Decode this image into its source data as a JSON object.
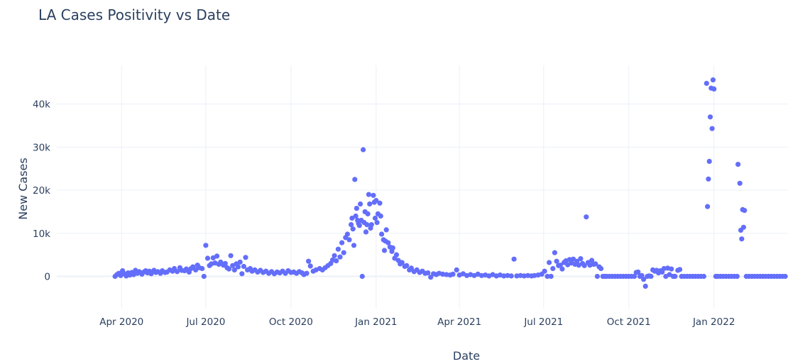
{
  "chart_data": {
    "type": "scatter",
    "title": "LA Cases Positivity vs Date",
    "xlabel": "Date",
    "ylabel": "New Cases",
    "x_range": [
      "2020-01-22",
      "2022-03-22"
    ],
    "y_range": [
      -7500,
      49000
    ],
    "x_ticks": [
      {
        "date": "2020-04-01",
        "label": "Apr 2020"
      },
      {
        "date": "2020-07-01",
        "label": "Jul 2020"
      },
      {
        "date": "2020-10-01",
        "label": "Oct 2020"
      },
      {
        "date": "2021-01-01",
        "label": "Jan 2021"
      },
      {
        "date": "2021-04-01",
        "label": "Apr 2021"
      },
      {
        "date": "2021-07-01",
        "label": "Jul 2021"
      },
      {
        "date": "2021-10-01",
        "label": "Oct 2021"
      },
      {
        "date": "2022-01-01",
        "label": "Jan 2022"
      }
    ],
    "y_ticks": [
      {
        "value": 0,
        "label": "0"
      },
      {
        "value": 10000,
        "label": "10k"
      },
      {
        "value": 20000,
        "label": "20k"
      },
      {
        "value": 30000,
        "label": "30k"
      },
      {
        "value": 40000,
        "label": "40k"
      }
    ],
    "grid": true,
    "legend": false,
    "marker_color": "#636efa",
    "points": [
      [
        "2020-03-25",
        0
      ],
      [
        "2020-03-27",
        400
      ],
      [
        "2020-03-29",
        700
      ],
      [
        "2020-03-31",
        200
      ],
      [
        "2020-04-02",
        1300
      ],
      [
        "2020-04-04",
        600
      ],
      [
        "2020-04-06",
        100
      ],
      [
        "2020-04-08",
        800
      ],
      [
        "2020-04-10",
        300
      ],
      [
        "2020-04-12",
        900
      ],
      [
        "2020-04-14",
        400
      ],
      [
        "2020-04-16",
        1400
      ],
      [
        "2020-04-18",
        700
      ],
      [
        "2020-04-20",
        1100
      ],
      [
        "2020-04-23",
        500
      ],
      [
        "2020-04-25",
        1000
      ],
      [
        "2020-04-27",
        1300
      ],
      [
        "2020-04-29",
        800
      ],
      [
        "2020-05-01",
        1200
      ],
      [
        "2020-05-03",
        600
      ],
      [
        "2020-05-06",
        1400
      ],
      [
        "2020-05-08",
        900
      ],
      [
        "2020-05-10",
        1100
      ],
      [
        "2020-05-13",
        700
      ],
      [
        "2020-05-15",
        1300
      ],
      [
        "2020-05-18",
        900
      ],
      [
        "2020-05-20",
        1000
      ],
      [
        "2020-05-23",
        1500
      ],
      [
        "2020-05-26",
        1200
      ],
      [
        "2020-05-28",
        1800
      ],
      [
        "2020-05-31",
        1100
      ],
      [
        "2020-06-03",
        2000
      ],
      [
        "2020-06-05",
        1400
      ],
      [
        "2020-06-08",
        1300
      ],
      [
        "2020-06-10",
        1700
      ],
      [
        "2020-06-13",
        1000
      ],
      [
        "2020-06-15",
        1800
      ],
      [
        "2020-06-17",
        2200
      ],
      [
        "2020-06-20",
        1500
      ],
      [
        "2020-06-22",
        2600
      ],
      [
        "2020-06-24",
        2000
      ],
      [
        "2020-06-27",
        1800
      ],
      [
        "2020-06-29",
        0
      ],
      [
        "2020-07-01",
        7200
      ],
      [
        "2020-07-03",
        4200
      ],
      [
        "2020-07-05",
        2500
      ],
      [
        "2020-07-07",
        2900
      ],
      [
        "2020-07-09",
        4300
      ],
      [
        "2020-07-11",
        3100
      ],
      [
        "2020-07-13",
        4700
      ],
      [
        "2020-07-15",
        2800
      ],
      [
        "2020-07-17",
        3300
      ],
      [
        "2020-07-20",
        2600
      ],
      [
        "2020-07-22",
        3000
      ],
      [
        "2020-07-24",
        2000
      ],
      [
        "2020-07-26",
        1700
      ],
      [
        "2020-07-28",
        4800
      ],
      [
        "2020-07-30",
        2500
      ],
      [
        "2020-08-01",
        1500
      ],
      [
        "2020-08-03",
        2900
      ],
      [
        "2020-08-05",
        2200
      ],
      [
        "2020-08-07",
        3300
      ],
      [
        "2020-08-09",
        600
      ],
      [
        "2020-08-11",
        2300
      ],
      [
        "2020-08-13",
        4400
      ],
      [
        "2020-08-15",
        1500
      ],
      [
        "2020-08-18",
        1800
      ],
      [
        "2020-08-20",
        1200
      ],
      [
        "2020-08-23",
        1500
      ],
      [
        "2020-08-26",
        1000
      ],
      [
        "2020-08-29",
        1400
      ],
      [
        "2020-09-01",
        900
      ],
      [
        "2020-09-04",
        1200
      ],
      [
        "2020-09-07",
        700
      ],
      [
        "2020-09-10",
        1100
      ],
      [
        "2020-09-13",
        600
      ],
      [
        "2020-09-16",
        1000
      ],
      [
        "2020-09-19",
        800
      ],
      [
        "2020-09-22",
        1200
      ],
      [
        "2020-09-25",
        700
      ],
      [
        "2020-09-28",
        1300
      ],
      [
        "2020-10-01",
        900
      ],
      [
        "2020-10-04",
        1000
      ],
      [
        "2020-10-07",
        700
      ],
      [
        "2020-10-10",
        1100
      ],
      [
        "2020-10-13",
        800
      ],
      [
        "2020-10-15",
        400
      ],
      [
        "2020-10-18",
        700
      ],
      [
        "2020-10-20",
        3500
      ],
      [
        "2020-10-22",
        2400
      ],
      [
        "2020-10-25",
        1200
      ],
      [
        "2020-10-28",
        1500
      ],
      [
        "2020-11-01",
        1800
      ],
      [
        "2020-11-04",
        1500
      ],
      [
        "2020-11-07",
        2000
      ],
      [
        "2020-11-10",
        2500
      ],
      [
        "2020-11-13",
        3000
      ],
      [
        "2020-11-15",
        3800
      ],
      [
        "2020-11-17",
        4800
      ],
      [
        "2020-11-19",
        3600
      ],
      [
        "2020-11-21",
        6300
      ],
      [
        "2020-11-23",
        4500
      ],
      [
        "2020-11-25",
        7800
      ],
      [
        "2020-11-27",
        5500
      ],
      [
        "2020-11-29",
        9000
      ],
      [
        "2020-12-01",
        9800
      ],
      [
        "2020-12-03",
        8500
      ],
      [
        "2020-12-05",
        12000
      ],
      [
        "2020-12-06",
        13500
      ],
      [
        "2020-12-07",
        11000
      ],
      [
        "2020-12-08",
        7200
      ],
      [
        "2020-12-09",
        22500
      ],
      [
        "2020-12-10",
        14000
      ],
      [
        "2020-12-11",
        15800
      ],
      [
        "2020-12-12",
        13000
      ],
      [
        "2020-12-13",
        12300
      ],
      [
        "2020-12-14",
        11800
      ],
      [
        "2020-12-15",
        16800
      ],
      [
        "2020-12-16",
        13000
      ],
      [
        "2020-12-17",
        0
      ],
      [
        "2020-12-18",
        29400
      ],
      [
        "2020-12-19",
        12500
      ],
      [
        "2020-12-20",
        15000
      ],
      [
        "2020-12-21",
        10300
      ],
      [
        "2020-12-22",
        12000
      ],
      [
        "2020-12-23",
        14500
      ],
      [
        "2020-12-24",
        19000
      ],
      [
        "2020-12-25",
        16800
      ],
      [
        "2020-12-26",
        11200
      ],
      [
        "2020-12-27",
        12000
      ],
      [
        "2020-12-29",
        18800
      ],
      [
        "2020-12-30",
        17200
      ],
      [
        "2020-12-31",
        13500
      ],
      [
        "2021-01-01",
        17600
      ],
      [
        "2021-01-02",
        12500
      ],
      [
        "2021-01-03",
        14500
      ],
      [
        "2021-01-05",
        17000
      ],
      [
        "2021-01-06",
        14000
      ],
      [
        "2021-01-07",
        9800
      ],
      [
        "2021-01-09",
        8500
      ],
      [
        "2021-01-10",
        6000
      ],
      [
        "2021-01-11",
        8200
      ],
      [
        "2021-01-12",
        10800
      ],
      [
        "2021-01-14",
        7800
      ],
      [
        "2021-01-16",
        6800
      ],
      [
        "2021-01-18",
        5800
      ],
      [
        "2021-01-19",
        6600
      ],
      [
        "2021-01-21",
        4200
      ],
      [
        "2021-01-23",
        5000
      ],
      [
        "2021-01-25",
        3700
      ],
      [
        "2021-01-27",
        2900
      ],
      [
        "2021-01-29",
        3200
      ],
      [
        "2021-02-01",
        2300
      ],
      [
        "2021-02-03",
        2500
      ],
      [
        "2021-02-06",
        1500
      ],
      [
        "2021-02-08",
        1900
      ],
      [
        "2021-02-11",
        1100
      ],
      [
        "2021-02-14",
        1500
      ],
      [
        "2021-02-17",
        900
      ],
      [
        "2021-02-20",
        1200
      ],
      [
        "2021-02-23",
        700
      ],
      [
        "2021-02-26",
        800
      ],
      [
        "2021-03-01",
        -200
      ],
      [
        "2021-03-04",
        600
      ],
      [
        "2021-03-07",
        400
      ],
      [
        "2021-03-10",
        700
      ],
      [
        "2021-03-14",
        500
      ],
      [
        "2021-03-18",
        400
      ],
      [
        "2021-03-22",
        300
      ],
      [
        "2021-03-25",
        500
      ],
      [
        "2021-03-29",
        1500
      ],
      [
        "2021-04-01",
        300
      ],
      [
        "2021-04-05",
        600
      ],
      [
        "2021-04-09",
        200
      ],
      [
        "2021-04-13",
        400
      ],
      [
        "2021-04-17",
        200
      ],
      [
        "2021-04-21",
        500
      ],
      [
        "2021-04-25",
        200
      ],
      [
        "2021-04-29",
        300
      ],
      [
        "2021-05-03",
        100
      ],
      [
        "2021-05-07",
        400
      ],
      [
        "2021-05-11",
        100
      ],
      [
        "2021-05-15",
        300
      ],
      [
        "2021-05-19",
        100
      ],
      [
        "2021-05-23",
        200
      ],
      [
        "2021-05-27",
        100
      ],
      [
        "2021-05-30",
        4000
      ],
      [
        "2021-06-02",
        100
      ],
      [
        "2021-06-06",
        200
      ],
      [
        "2021-06-10",
        100
      ],
      [
        "2021-06-14",
        200
      ],
      [
        "2021-06-18",
        100
      ],
      [
        "2021-06-21",
        200
      ],
      [
        "2021-06-25",
        300
      ],
      [
        "2021-06-29",
        500
      ],
      [
        "2021-07-02",
        1200
      ],
      [
        "2021-07-05",
        0
      ],
      [
        "2021-07-07",
        3200
      ],
      [
        "2021-07-09",
        0
      ],
      [
        "2021-07-11",
        1800
      ],
      [
        "2021-07-13",
        5500
      ],
      [
        "2021-07-15",
        3500
      ],
      [
        "2021-07-17",
        2500
      ],
      [
        "2021-07-19",
        2600
      ],
      [
        "2021-07-21",
        1700
      ],
      [
        "2021-07-23",
        3200
      ],
      [
        "2021-07-25",
        3600
      ],
      [
        "2021-07-27",
        2700
      ],
      [
        "2021-07-29",
        3900
      ],
      [
        "2021-07-31",
        3100
      ],
      [
        "2021-08-02",
        4000
      ],
      [
        "2021-08-04",
        2800
      ],
      [
        "2021-08-06",
        3500
      ],
      [
        "2021-08-08",
        2600
      ],
      [
        "2021-08-10",
        4100
      ],
      [
        "2021-08-12",
        3000
      ],
      [
        "2021-08-14",
        2500
      ],
      [
        "2021-08-16",
        13800
      ],
      [
        "2021-08-18",
        3200
      ],
      [
        "2021-08-20",
        2600
      ],
      [
        "2021-08-22",
        3700
      ],
      [
        "2021-08-24",
        2800
      ],
      [
        "2021-08-26",
        2900
      ],
      [
        "2021-08-28",
        0
      ],
      [
        "2021-08-30",
        2200
      ],
      [
        "2021-09-01",
        1800
      ],
      [
        "2021-09-03",
        0
      ],
      [
        "2021-09-05",
        0
      ],
      [
        "2021-09-07",
        0
      ],
      [
        "2021-09-10",
        0
      ],
      [
        "2021-09-13",
        0
      ],
      [
        "2021-09-16",
        0
      ],
      [
        "2021-09-19",
        0
      ],
      [
        "2021-09-22",
        0
      ],
      [
        "2021-09-25",
        0
      ],
      [
        "2021-09-28",
        0
      ],
      [
        "2021-10-01",
        0
      ],
      [
        "2021-10-04",
        0
      ],
      [
        "2021-10-07",
        0
      ],
      [
        "2021-10-09",
        900
      ],
      [
        "2021-10-11",
        1000
      ],
      [
        "2021-10-13",
        0
      ],
      [
        "2021-10-15",
        200
      ],
      [
        "2021-10-17",
        -700
      ],
      [
        "2021-10-19",
        -2300
      ],
      [
        "2021-10-21",
        0
      ],
      [
        "2021-10-23",
        100
      ],
      [
        "2021-10-25",
        0
      ],
      [
        "2021-10-27",
        1500
      ],
      [
        "2021-10-29",
        1200
      ],
      [
        "2021-10-31",
        1400
      ],
      [
        "2021-11-02",
        800
      ],
      [
        "2021-11-04",
        1300
      ],
      [
        "2021-11-06",
        1000
      ],
      [
        "2021-11-08",
        1800
      ],
      [
        "2021-11-10",
        0
      ],
      [
        "2021-11-12",
        1900
      ],
      [
        "2021-11-14",
        400
      ],
      [
        "2021-11-16",
        1700
      ],
      [
        "2021-11-18",
        0
      ],
      [
        "2021-11-20",
        0
      ],
      [
        "2021-11-23",
        1400
      ],
      [
        "2021-11-25",
        1600
      ],
      [
        "2021-11-27",
        0
      ],
      [
        "2021-11-30",
        0
      ],
      [
        "2021-12-03",
        0
      ],
      [
        "2021-12-06",
        0
      ],
      [
        "2021-12-09",
        0
      ],
      [
        "2021-12-12",
        0
      ],
      [
        "2021-12-15",
        0
      ],
      [
        "2021-12-18",
        0
      ],
      [
        "2021-12-21",
        0
      ],
      [
        "2021-12-24",
        44800
      ],
      [
        "2021-12-25",
        16200
      ],
      [
        "2021-12-26",
        22600
      ],
      [
        "2021-12-27",
        26700
      ],
      [
        "2021-12-28",
        37000
      ],
      [
        "2021-12-29",
        43700
      ],
      [
        "2021-12-30",
        34300
      ],
      [
        "2021-12-31",
        45600
      ],
      [
        "2022-01-01",
        43500
      ],
      [
        "2022-01-03",
        0
      ],
      [
        "2022-01-05",
        0
      ],
      [
        "2022-01-08",
        0
      ],
      [
        "2022-01-11",
        0
      ],
      [
        "2022-01-14",
        0
      ],
      [
        "2022-01-17",
        0
      ],
      [
        "2022-01-20",
        0
      ],
      [
        "2022-01-23",
        0
      ],
      [
        "2022-01-26",
        0
      ],
      [
        "2022-01-27",
        26000
      ],
      [
        "2022-01-29",
        21600
      ],
      [
        "2022-01-30",
        10700
      ],
      [
        "2022-01-31",
        8700
      ],
      [
        "2022-02-01",
        15500
      ],
      [
        "2022-02-02",
        11400
      ],
      [
        "2022-02-03",
        15300
      ],
      [
        "2022-02-05",
        0
      ],
      [
        "2022-02-08",
        0
      ],
      [
        "2022-02-11",
        0
      ],
      [
        "2022-02-14",
        0
      ],
      [
        "2022-02-17",
        0
      ],
      [
        "2022-02-20",
        0
      ],
      [
        "2022-02-23",
        0
      ],
      [
        "2022-02-26",
        0
      ],
      [
        "2022-03-01",
        0
      ],
      [
        "2022-03-04",
        0
      ],
      [
        "2022-03-07",
        0
      ],
      [
        "2022-03-10",
        0
      ],
      [
        "2022-03-13",
        0
      ],
      [
        "2022-03-16",
        0
      ],
      [
        "2022-03-19",
        0
      ]
    ]
  }
}
